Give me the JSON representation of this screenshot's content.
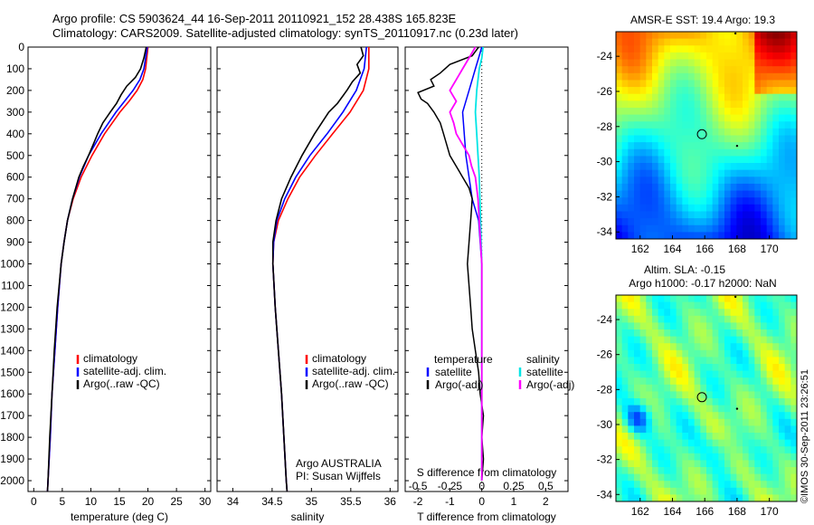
{
  "header": {
    "line1": "Argo profile: CS 5903624_44 16-Sep-2011 20110921_152 28.438S 165.823E",
    "line2": "Climatology: CARS2009. Satellite-adjusted climatology: synTS_20110917.nc (0.23d later)"
  },
  "colors": {
    "climatology": "#ff0000",
    "satellite": "#0000ff",
    "argo": "#000000",
    "sat_T": "#00e5e5",
    "argo_S": "#ff00ff"
  },
  "chart_data": [
    {
      "type": "line",
      "panel": "temperature",
      "xlabel": "temperature (deg C)",
      "xlim": [
        -1,
        31
      ],
      "xticks": [
        "0",
        "5",
        "10",
        "15",
        "20",
        "25",
        "30"
      ],
      "ylim": [
        0,
        2050
      ],
      "yticks": [
        "0",
        "100",
        "200",
        "300",
        "400",
        "500",
        "600",
        "700",
        "800",
        "900",
        "1000",
        "1100",
        "1200",
        "1300",
        "1400",
        "1500",
        "1600",
        "1700",
        "1800",
        "1900",
        "2000"
      ],
      "legend": [
        "climatology",
        "satellite-adj. clim.",
        "Argo(..raw -QC)"
      ],
      "series": [
        {
          "name": "climatology",
          "depth": [
            0,
            100,
            150,
            200,
            250,
            300,
            400,
            500,
            600,
            700,
            800,
            900,
            1000,
            1200,
            1400,
            1600,
            1800,
            2000,
            2050
          ],
          "values": [
            20.0,
            19.6,
            19.1,
            18.1,
            16.7,
            15.1,
            12.4,
            10.2,
            8.3,
            6.9,
            5.9,
            5.3,
            4.8,
            4.2,
            3.7,
            3.2,
            2.9,
            2.5,
            2.4
          ]
        },
        {
          "name": "satellite-adj. clim.",
          "depth": [
            0,
            100,
            150,
            200,
            250,
            300,
            400,
            500,
            600,
            700,
            800,
            900,
            1000,
            1200,
            1400,
            1600,
            1800,
            2000,
            2050
          ],
          "values": [
            19.9,
            19.3,
            18.6,
            17.4,
            15.9,
            14.4,
            11.8,
            9.6,
            8.0,
            6.8,
            5.9,
            5.3,
            4.8,
            4.2,
            3.7,
            3.2,
            2.9,
            2.5,
            2.4
          ]
        },
        {
          "name": "Argo(..raw -QC)",
          "depth": [
            0,
            50,
            100,
            140,
            180,
            220,
            260,
            300,
            350,
            400,
            450,
            500,
            550,
            600,
            700,
            800,
            900,
            1000,
            1200,
            1400,
            1600,
            1800,
            2000,
            2050
          ],
          "values": [
            19.7,
            19.3,
            18.7,
            17.8,
            16.3,
            15.3,
            14.5,
            13.4,
            12.1,
            11.2,
            10.4,
            9.6,
            8.7,
            7.9,
            6.8,
            5.9,
            5.3,
            4.8,
            4.1,
            3.6,
            3.2,
            2.8,
            2.5,
            2.4
          ]
        }
      ]
    },
    {
      "type": "line",
      "panel": "salinity",
      "xlabel": "salinity",
      "xlim": [
        33.8,
        36.1
      ],
      "xticks": [
        "34",
        "34.5",
        "35",
        "35.5",
        "36"
      ],
      "ylim": [
        0,
        2050
      ],
      "legend": [
        "climatology",
        "satellite-adj. clim.",
        "Argo(..raw -QC)"
      ],
      "annotation": [
        "Argo AUSTRALIA",
        "PI: Susan Wijffels"
      ],
      "series": [
        {
          "name": "climatology",
          "depth": [
            0,
            100,
            200,
            300,
            400,
            500,
            600,
            700,
            800,
            900,
            1000,
            1200,
            1400,
            1600,
            1800,
            2000,
            2050
          ],
          "values": [
            35.73,
            35.73,
            35.66,
            35.49,
            35.27,
            35.05,
            34.85,
            34.7,
            34.58,
            34.52,
            34.51,
            34.54,
            34.58,
            34.62,
            34.65,
            34.68,
            34.69
          ]
        },
        {
          "name": "satellite-adj. clim.",
          "depth": [
            0,
            100,
            200,
            300,
            400,
            500,
            600,
            700,
            800,
            900,
            1000,
            1200,
            1400,
            1600,
            1800,
            2000,
            2050
          ],
          "values": [
            35.7,
            35.67,
            35.57,
            35.4,
            35.2,
            34.98,
            34.8,
            34.66,
            34.56,
            34.52,
            34.51,
            34.54,
            34.58,
            34.62,
            34.65,
            34.68,
            34.69
          ]
        },
        {
          "name": "Argo(..raw -QC)",
          "depth": [
            0,
            40,
            80,
            120,
            160,
            200,
            260,
            300,
            400,
            500,
            600,
            700,
            800,
            900,
            1000,
            1200,
            1400,
            1600,
            1800,
            2000,
            2050
          ],
          "values": [
            35.63,
            35.66,
            35.58,
            35.62,
            35.52,
            35.45,
            35.33,
            35.22,
            35.04,
            34.88,
            34.74,
            34.62,
            34.55,
            34.51,
            34.51,
            34.54,
            34.58,
            34.62,
            34.65,
            34.68,
            34.69
          ]
        }
      ]
    },
    {
      "type": "line",
      "panel": "difference",
      "xlabel": "T difference from climatology",
      "xlabel2": "S difference from climatology",
      "xlim": [
        -2.4,
        2.7
      ],
      "xticks_T": [
        "-2",
        "-1",
        "0",
        "1",
        "2"
      ],
      "xticks_S": [
        "-0.5",
        "-0.25",
        "0",
        "0.25",
        "0.5"
      ],
      "ylim": [
        0,
        2050
      ],
      "legend_T": [
        "temperature",
        "satellite",
        "Argo(-adj)"
      ],
      "legend_S": [
        "salinity",
        "satellite",
        "Argo(-adj)"
      ],
      "series": [
        {
          "name": "satellite",
          "group": "temperature",
          "depth": [
            0,
            50,
            100,
            200,
            300,
            400,
            500,
            600,
            700,
            800,
            900,
            1000,
            1200,
            1400,
            1600,
            1800,
            2000
          ],
          "values": [
            0,
            -0.1,
            -0.2,
            -0.4,
            -0.6,
            -0.55,
            -0.5,
            -0.4,
            -0.3,
            -0.1,
            -0.05,
            0,
            0,
            0,
            0,
            0,
            0
          ]
        },
        {
          "name": "Argo(-adj)",
          "group": "temperature",
          "depth": [
            0,
            40,
            80,
            120,
            150,
            180,
            210,
            240,
            260,
            300,
            350,
            400,
            450,
            500,
            550,
            600,
            650,
            700,
            800,
            900,
            1000,
            1100,
            1200,
            1300,
            1400,
            1500,
            1600,
            1700,
            1800,
            1900,
            2000
          ],
          "values": [
            -0.1,
            -0.3,
            -1.0,
            -1.3,
            -1.6,
            -1.5,
            -2.0,
            -1.9,
            -1.7,
            -1.5,
            -1.3,
            -1.2,
            -1.1,
            -1.0,
            -0.8,
            -0.6,
            -0.4,
            -0.3,
            -0.35,
            -0.4,
            -0.45,
            -0.4,
            -0.35,
            -0.3,
            -0.2,
            -0.1,
            -0.05,
            0.05,
            0,
            0.05,
            0
          ]
        },
        {
          "name": "satellite",
          "group": "salinity",
          "depth": [
            0,
            50,
            100,
            200,
            300,
            400,
            500,
            600,
            800,
            1000,
            1200,
            1400,
            1600,
            1800,
            2000
          ],
          "values": [
            0.01,
            0.0,
            -0.02,
            -0.04,
            -0.05,
            -0.04,
            -0.03,
            -0.02,
            -0.01,
            0,
            0,
            0,
            0,
            0,
            0
          ]
        },
        {
          "name": "Argo(-adj)",
          "group": "salinity",
          "depth": [
            0,
            50,
            100,
            150,
            200,
            250,
            300,
            350,
            400,
            450,
            500,
            550,
            600,
            700,
            800,
            900,
            1000,
            1200,
            1400,
            1600,
            1800,
            2000
          ],
          "values": [
            -0.05,
            -0.1,
            -0.15,
            -0.2,
            -0.25,
            -0.2,
            -0.25,
            -0.22,
            -0.2,
            -0.15,
            -0.1,
            -0.08,
            -0.05,
            -0.03,
            -0.02,
            -0.01,
            0,
            0,
            0,
            0,
            0,
            0
          ]
        }
      ]
    },
    {
      "type": "heatmap",
      "panel": "sst_map",
      "title": "AMSR-E SST: 19.4  Argo: 19.3",
      "xticks": [
        "162",
        "164",
        "166",
        "168",
        "170"
      ],
      "yticks": [
        "-24",
        "-26",
        "-28",
        "-30",
        "-32",
        "-34"
      ],
      "xlim": [
        160.5,
        171.7
      ],
      "ylim": [
        -34.4,
        -22.6
      ]
    },
    {
      "type": "heatmap",
      "panel": "sla_map",
      "title": "Altim. SLA: -0.15",
      "subtitle": "Argo h1000: -0.17 h2000: NaN",
      "xticks": [
        "162",
        "164",
        "166",
        "168",
        "170"
      ],
      "yticks": [
        "-24",
        "-26",
        "-28",
        "-30",
        "-32",
        "-34"
      ],
      "xlim": [
        160.5,
        171.7
      ],
      "ylim": [
        -34.4,
        -22.6
      ]
    }
  ],
  "footer": {
    "credit": "©IMOS 30-Sep-2011 23:26:51"
  }
}
